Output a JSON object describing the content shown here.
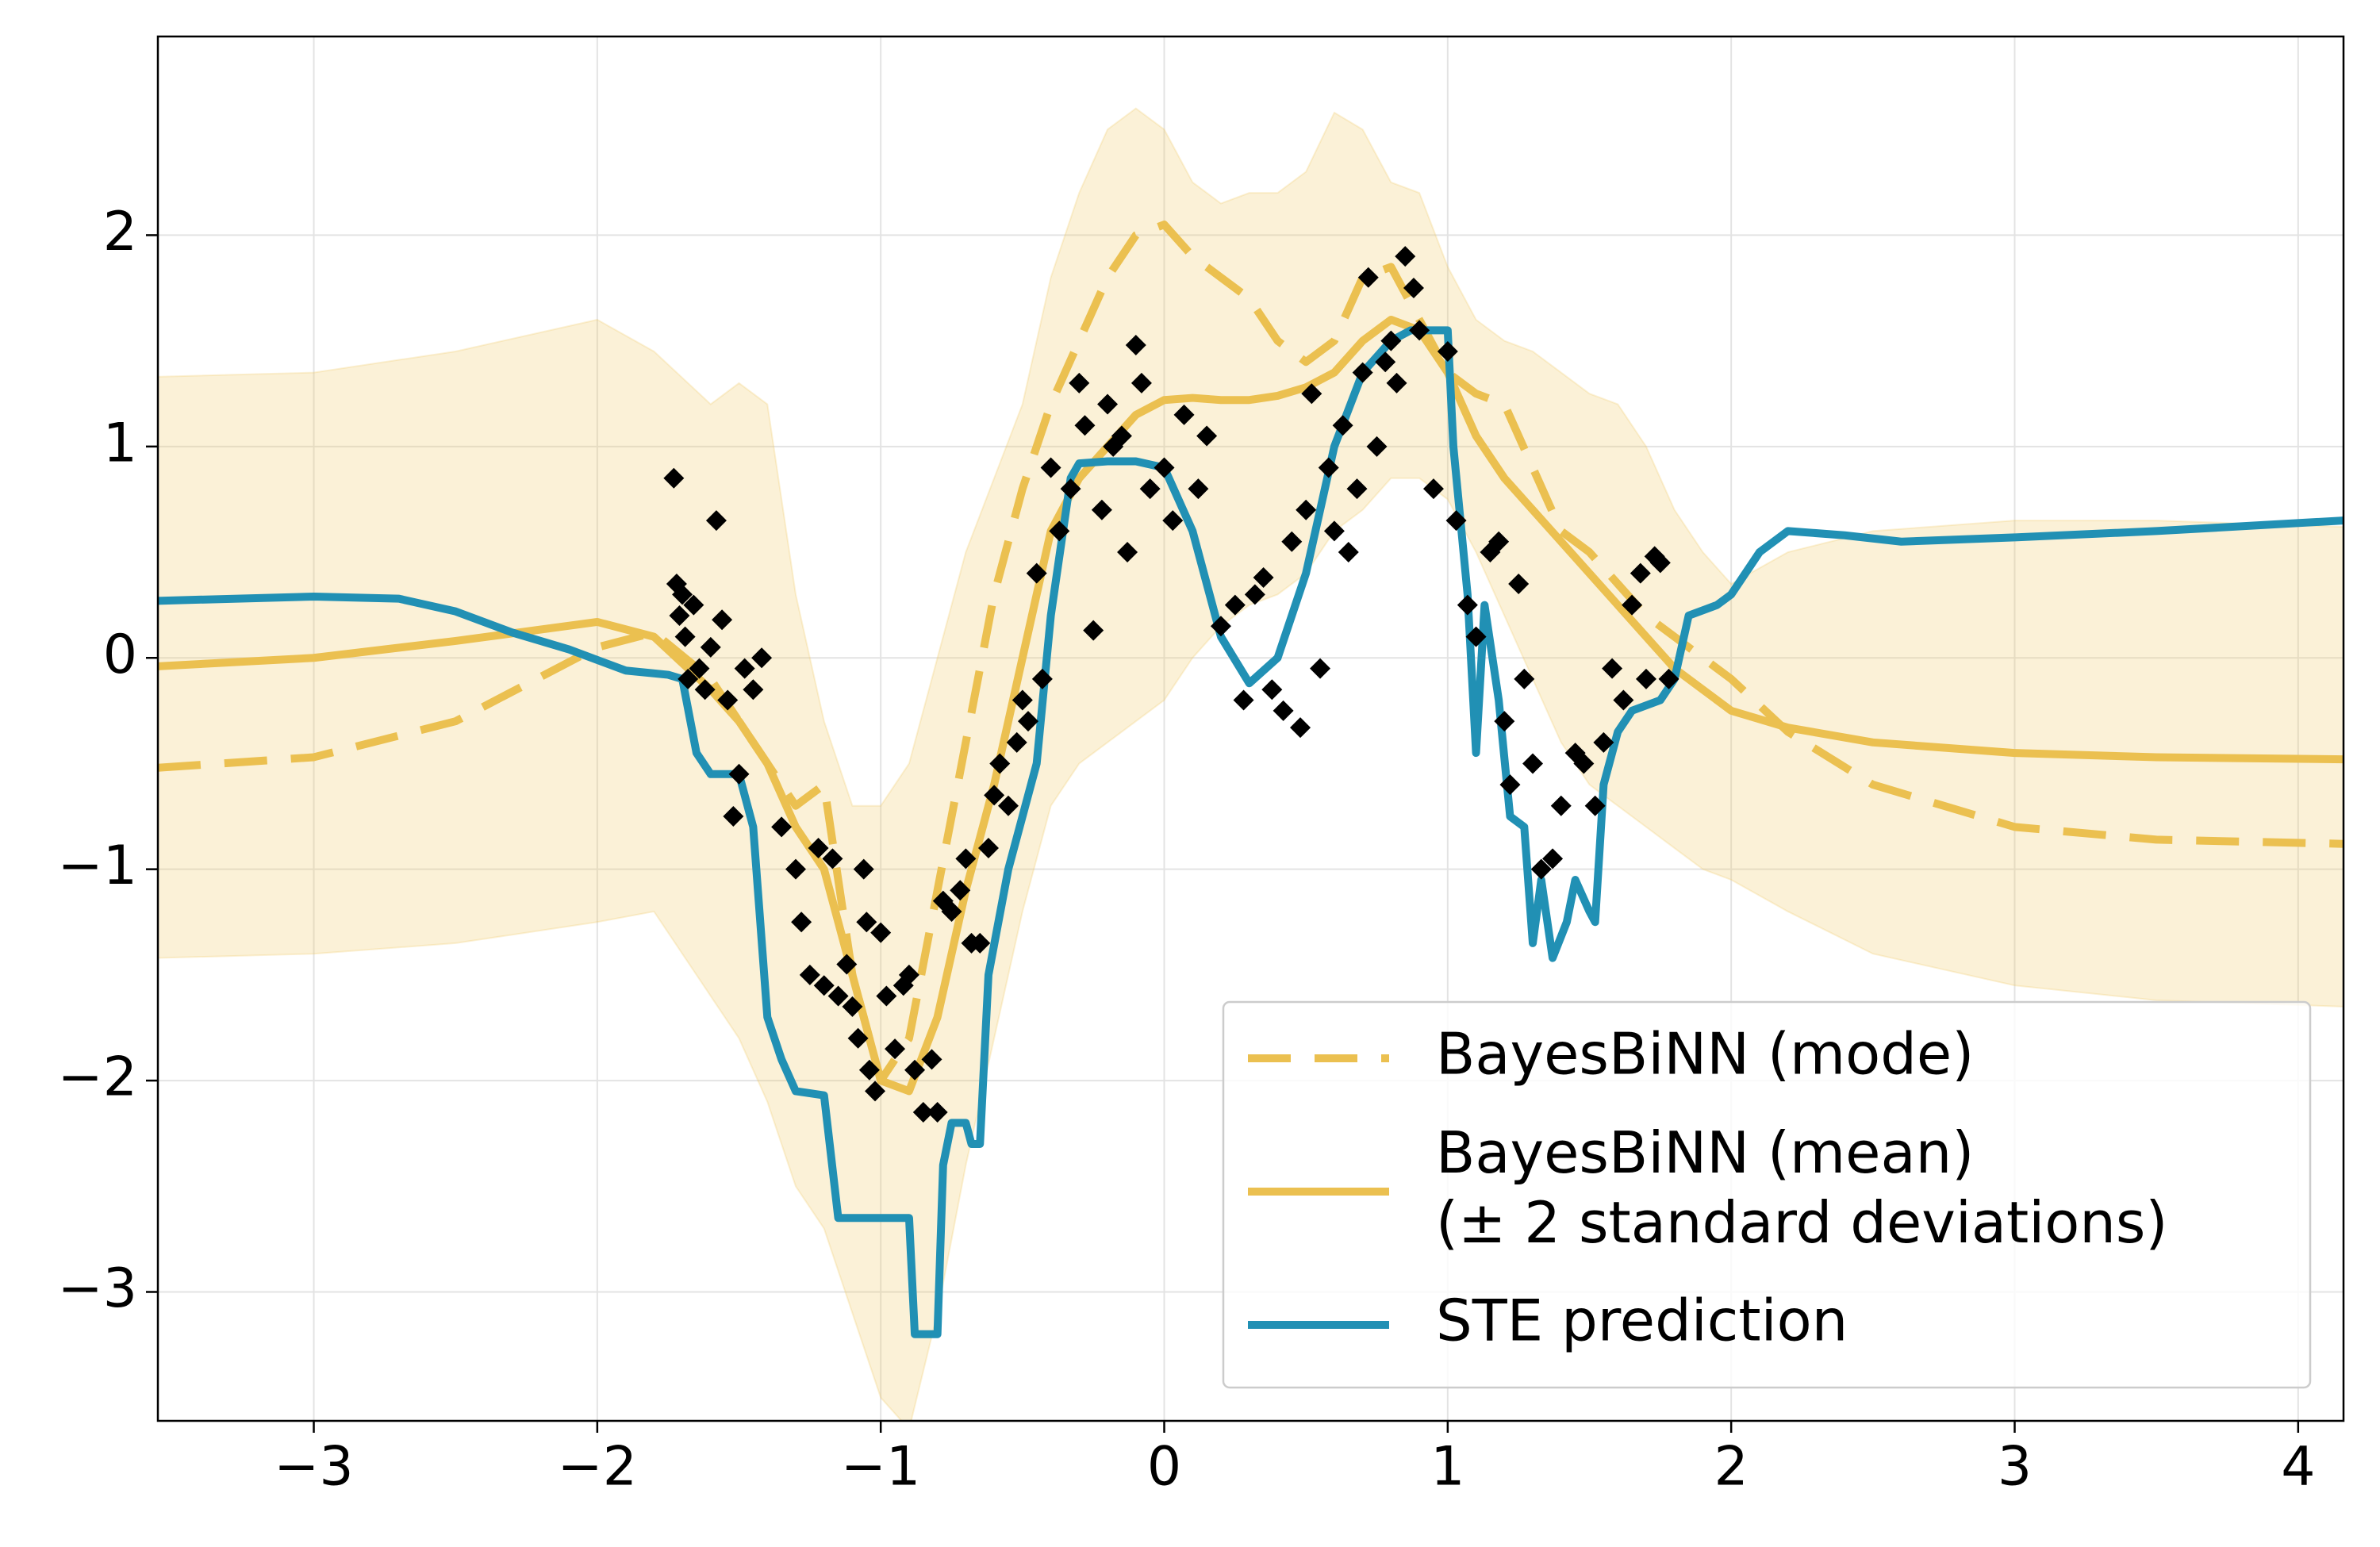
{
  "chart_data": {
    "type": "line",
    "xlim": [
      -3.55,
      4.16
    ],
    "ylim": [
      -3.61,
      2.94
    ],
    "xticks": [
      {
        "value": -3,
        "label": "−3"
      },
      {
        "value": -2,
        "label": "−2"
      },
      {
        "value": -1,
        "label": "−1"
      },
      0,
      1,
      2,
      3,
      4
    ],
    "yticks": [
      {
        "value": -3,
        "label": "−3"
      },
      {
        "value": -2,
        "label": "−2"
      },
      {
        "value": -1,
        "label": "−1"
      },
      0,
      1,
      2
    ],
    "grid": true,
    "legend": "lower right",
    "x": [
      -3.55,
      -3,
      -2.5,
      -2,
      -1.8,
      -1.6,
      -1.5,
      -1.4,
      -1.3,
      -1.2,
      -1.1,
      -1.0,
      -0.9,
      -0.8,
      -0.7,
      -0.6,
      -0.5,
      -0.4,
      -0.3,
      -0.2,
      -0.1,
      0,
      0.1,
      0.2,
      0.3,
      0.4,
      0.5,
      0.6,
      0.7,
      0.8,
      0.9,
      1.0,
      1.1,
      1.2,
      1.3,
      1.4,
      1.5,
      1.6,
      1.7,
      1.8,
      1.9,
      2.0,
      2.2,
      2.5,
      3.0,
      3.5,
      4.16
    ],
    "band": {
      "color": "#f0c75e",
      "opacity": 0.25,
      "upper": [
        1.33,
        1.35,
        1.45,
        1.6,
        1.45,
        1.2,
        1.3,
        1.2,
        0.3,
        -0.3,
        -0.7,
        -0.7,
        -0.5,
        0.0,
        0.5,
        0.85,
        1.2,
        1.8,
        2.2,
        2.5,
        2.6,
        2.5,
        2.25,
        2.15,
        2.2,
        2.2,
        2.3,
        2.58,
        2.5,
        2.25,
        2.2,
        1.85,
        1.6,
        1.5,
        1.45,
        1.35,
        1.25,
        1.2,
        1.0,
        0.7,
        0.5,
        0.35,
        0.5,
        0.6,
        0.65,
        0.65,
        0.62
      ],
      "lower": [
        -1.42,
        -1.4,
        -1.35,
        -1.25,
        -1.2,
        -1.6,
        -1.8,
        -2.1,
        -2.5,
        -2.7,
        -3.1,
        -3.5,
        -3.65,
        -3.1,
        -2.4,
        -1.8,
        -1.2,
        -0.7,
        -0.5,
        -0.4,
        -0.3,
        -0.2,
        0.0,
        0.15,
        0.25,
        0.3,
        0.4,
        0.6,
        0.7,
        0.85,
        0.85,
        0.75,
        0.5,
        0.2,
        -0.1,
        -0.4,
        -0.6,
        -0.7,
        -0.8,
        -0.9,
        -1.0,
        -1.05,
        -1.2,
        -1.4,
        -1.55,
        -1.62,
        -1.65
      ]
    },
    "series": [
      {
        "name": "BayesBiNN (mode)",
        "color": "#ebc050",
        "linestyle": "dashed",
        "values": [
          -0.52,
          -0.47,
          -0.3,
          0.05,
          0.12,
          -0.1,
          -0.3,
          -0.5,
          -0.7,
          -0.6,
          -1.5,
          -2.0,
          -1.8,
          -1.1,
          -0.4,
          0.3,
          0.8,
          1.2,
          1.5,
          1.8,
          2.0,
          2.05,
          1.9,
          1.8,
          1.7,
          1.5,
          1.4,
          1.5,
          1.8,
          1.85,
          1.6,
          1.35,
          1.25,
          1.2,
          0.9,
          0.6,
          0.5,
          0.35,
          0.2,
          0.1,
          0.0,
          -0.1,
          -0.35,
          -0.6,
          -0.8,
          -0.86,
          -0.88
        ]
      },
      {
        "name": "BayesBiNN (mean)\n(± 2 standard deviations)",
        "color": "#ebc050",
        "linestyle": "solid",
        "values": [
          -0.04,
          0.0,
          0.08,
          0.17,
          0.1,
          -0.15,
          -0.3,
          -0.5,
          -0.8,
          -1.0,
          -1.5,
          -2.0,
          -2.05,
          -1.7,
          -1.1,
          -0.6,
          0.0,
          0.6,
          0.85,
          1.0,
          1.15,
          1.22,
          1.23,
          1.22,
          1.22,
          1.24,
          1.28,
          1.35,
          1.5,
          1.6,
          1.55,
          1.35,
          1.05,
          0.85,
          0.7,
          0.55,
          0.4,
          0.25,
          0.1,
          -0.05,
          -0.15,
          -0.25,
          -0.33,
          -0.4,
          -0.45,
          -0.47,
          -0.48
        ]
      },
      {
        "name": "STE prediction",
        "color": "#2190b4",
        "linestyle": "solid",
        "x": [
          -3.55,
          -3,
          -2.7,
          -2.5,
          -2.3,
          -2.1,
          -1.9,
          -1.75,
          -1.7,
          -1.65,
          -1.6,
          -1.5,
          -1.45,
          -1.4,
          -1.35,
          -1.3,
          -1.2,
          -1.15,
          -1.0,
          -0.9,
          -0.88,
          -0.8,
          -0.78,
          -0.75,
          -0.7,
          -0.68,
          -0.65,
          -0.62,
          -0.55,
          -0.45,
          -0.4,
          -0.33,
          -0.3,
          -0.2,
          -0.1,
          0,
          0.1,
          0.2,
          0.3,
          0.4,
          0.5,
          0.6,
          0.7,
          0.8,
          0.87,
          1.0,
          1.02,
          1.07,
          1.1,
          1.13,
          1.18,
          1.22,
          1.27,
          1.3,
          1.33,
          1.37,
          1.42,
          1.45,
          1.5,
          1.52,
          1.55,
          1.6,
          1.65,
          1.75,
          1.8,
          1.85,
          1.95,
          2.0,
          2.1,
          2.2,
          2.4,
          2.6,
          3.0,
          3.5,
          4.16
        ],
        "values": [
          0.27,
          0.29,
          0.28,
          0.22,
          0.12,
          0.04,
          -0.06,
          -0.08,
          -0.1,
          -0.45,
          -0.55,
          -0.55,
          -0.8,
          -1.7,
          -1.9,
          -2.05,
          -2.07,
          -2.65,
          -2.65,
          -2.65,
          -3.2,
          -3.2,
          -2.4,
          -2.2,
          -2.2,
          -2.3,
          -2.3,
          -1.5,
          -1.0,
          -0.5,
          0.2,
          0.85,
          0.92,
          0.93,
          0.93,
          0.9,
          0.6,
          0.1,
          -0.12,
          0.0,
          0.4,
          1.0,
          1.35,
          1.5,
          1.55,
          1.55,
          1.0,
          0.3,
          -0.45,
          0.25,
          -0.2,
          -0.75,
          -0.8,
          -1.35,
          -1.05,
          -1.42,
          -1.25,
          -1.05,
          -1.2,
          -1.25,
          -0.6,
          -0.35,
          -0.25,
          -0.2,
          -0.1,
          0.2,
          0.25,
          0.3,
          0.5,
          0.6,
          0.58,
          0.55,
          0.57,
          0.6,
          0.65
        ]
      }
    ],
    "scatter": {
      "color": "#000000",
      "x": [
        -1.73,
        -1.72,
        -1.71,
        -1.7,
        -1.69,
        -1.68,
        -1.66,
        -1.64,
        -1.62,
        -1.6,
        -1.58,
        -1.56,
        -1.54,
        -1.52,
        -1.5,
        -1.48,
        -1.45,
        -1.42,
        -1.35,
        -1.3,
        -1.28,
        -1.25,
        -1.22,
        -1.2,
        -1.17,
        -1.15,
        -1.12,
        -1.1,
        -1.08,
        -1.06,
        -1.05,
        -1.04,
        -1.02,
        -1.0,
        -0.98,
        -0.95,
        -0.92,
        -0.9,
        -0.88,
        -0.85,
        -0.82,
        -0.8,
        -0.78,
        -0.75,
        -0.72,
        -0.7,
        -0.68,
        -0.65,
        -0.62,
        -0.6,
        -0.58,
        -0.55,
        -0.52,
        -0.5,
        -0.48,
        -0.45,
        -0.43,
        -0.4,
        -0.37,
        -0.33,
        -0.3,
        -0.28,
        -0.25,
        -0.22,
        -0.2,
        -0.18,
        -0.15,
        -0.13,
        -0.1,
        -0.08,
        -0.05,
        0.0,
        0.03,
        0.07,
        0.12,
        0.15,
        0.2,
        0.25,
        0.28,
        0.32,
        0.35,
        0.38,
        0.42,
        0.45,
        0.48,
        0.5,
        0.52,
        0.55,
        0.58,
        0.6,
        0.63,
        0.65,
        0.68,
        0.7,
        0.72,
        0.75,
        0.78,
        0.8,
        0.82,
        0.85,
        0.88,
        0.9,
        0.95,
        1.0,
        1.03,
        1.07,
        1.1,
        1.15,
        1.18,
        1.2,
        1.22,
        1.25,
        1.27,
        1.3,
        1.33,
        1.37,
        1.4,
        1.45,
        1.48,
        1.52,
        1.55,
        1.58,
        1.62,
        1.65,
        1.68,
        1.7,
        1.73,
        1.75,
        1.78
      ],
      "y": [
        0.85,
        0.35,
        0.2,
        0.3,
        0.1,
        -0.1,
        0.25,
        -0.05,
        -0.15,
        0.05,
        0.65,
        0.18,
        -0.2,
        -0.75,
        -0.55,
        -0.05,
        -0.15,
        0.0,
        -0.8,
        -1.0,
        -1.25,
        -1.5,
        -0.9,
        -1.55,
        -0.95,
        -1.6,
        -1.45,
        -1.65,
        -1.8,
        -1.0,
        -1.25,
        -1.95,
        -2.05,
        -1.3,
        -1.6,
        -1.85,
        -1.55,
        -1.5,
        -1.95,
        -2.15,
        -1.9,
        -2.15,
        -1.15,
        -1.2,
        -1.1,
        -0.95,
        -1.35,
        -1.35,
        -0.9,
        -0.65,
        -0.5,
        -0.7,
        -0.4,
        -0.2,
        -0.3,
        0.4,
        -0.1,
        0.9,
        0.6,
        0.8,
        1.3,
        1.1,
        0.13,
        0.7,
        1.2,
        1.0,
        1.05,
        0.5,
        1.48,
        1.3,
        0.8,
        0.9,
        0.65,
        1.15,
        0.8,
        1.05,
        0.15,
        0.25,
        -0.2,
        0.3,
        0.38,
        -0.15,
        -0.25,
        0.55,
        -0.33,
        0.7,
        1.25,
        -0.05,
        0.9,
        0.6,
        1.1,
        0.5,
        0.8,
        1.35,
        1.8,
        1.0,
        1.4,
        1.5,
        1.3,
        1.9,
        1.75,
        1.55,
        0.8,
        1.45,
        0.65,
        0.25,
        0.1,
        0.5,
        0.55,
        -0.3,
        -0.6,
        0.35,
        -0.1,
        -0.5,
        -1.0,
        -0.95,
        -0.7,
        -0.45,
        -0.5,
        -0.7,
        -0.4,
        -0.05,
        -0.2,
        0.25,
        0.4,
        -0.1,
        0.48,
        0.45,
        -0.1
      ]
    }
  }
}
